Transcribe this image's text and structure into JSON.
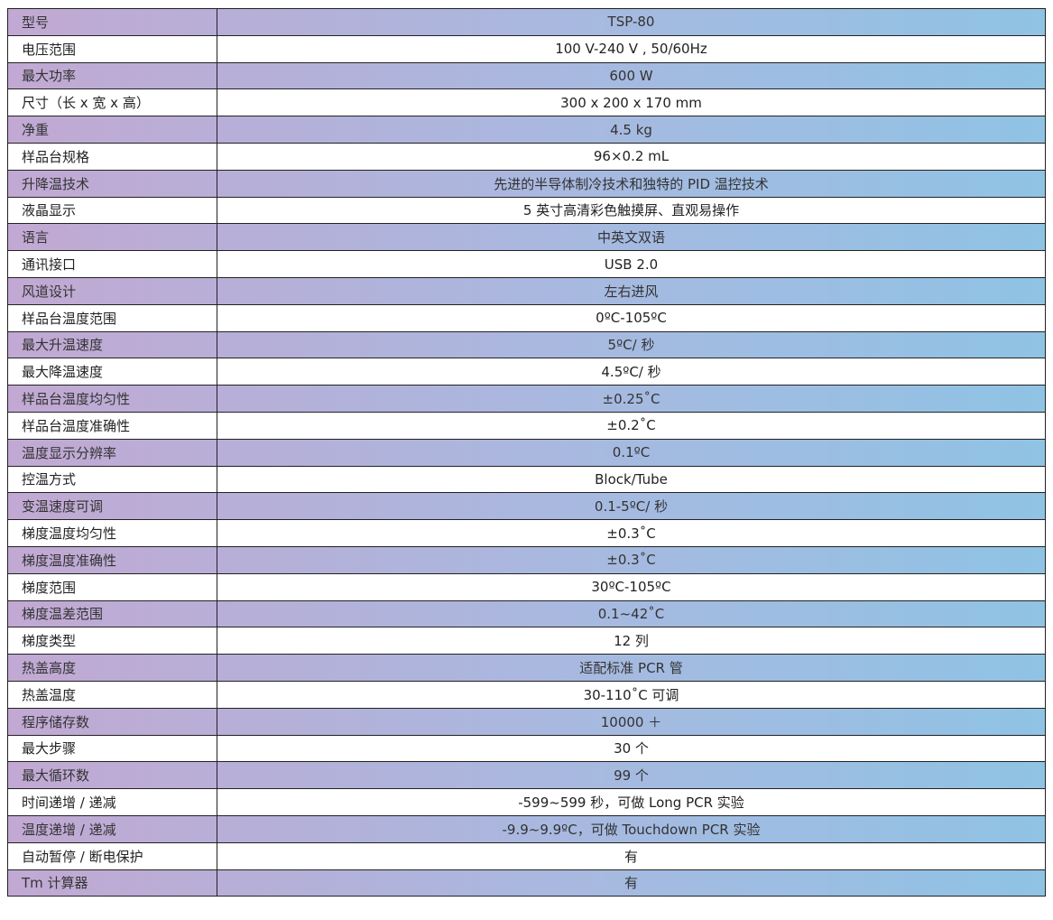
{
  "colors": {
    "shade_start": "#c2a9d3",
    "shade_end": "#8fc3e4",
    "plain": "#ffffff",
    "border": "#222222"
  },
  "rows": [
    {
      "label": "型号",
      "value": "TSP-80"
    },
    {
      "label": "电压范围",
      "value": "100 V-240 V , 50/60Hz"
    },
    {
      "label": "最大功率",
      "value": "600 W"
    },
    {
      "label": "尺寸（长 x 宽 x 高）",
      "value": "300 x 200 x 170 mm"
    },
    {
      "label": "净重",
      "value": "4.5 kg"
    },
    {
      "label": "样品台规格",
      "value": "96×0.2 mL"
    },
    {
      "label": "升降温技术",
      "value": "先进的半导体制冷技术和独特的 PID 温控技术"
    },
    {
      "label": "液晶显示",
      "value": "5 英寸高清彩色触摸屏、直观易操作"
    },
    {
      "label": "语言",
      "value": "中英文双语"
    },
    {
      "label": "通讯接口",
      "value": "USB 2.0"
    },
    {
      "label": "风道设计",
      "value": "左右进风"
    },
    {
      "label": "样品台温度范围",
      "value": "0ºC-105ºC"
    },
    {
      "label": "最大升温速度",
      "value": "5ºC/ 秒"
    },
    {
      "label": "最大降温速度",
      "value": "4.5ºC/ 秒"
    },
    {
      "label": "样品台温度均匀性",
      "value": "±0.25˚C"
    },
    {
      "label": "样品台温度准确性",
      "value": "±0.2˚C"
    },
    {
      "label": "温度显示分辨率",
      "value": "0.1ºC"
    },
    {
      "label": "控温方式",
      "value": "Block/Tube"
    },
    {
      "label": "变温速度可调",
      "value": "0.1-5ºC/ 秒"
    },
    {
      "label": "梯度温度均匀性",
      "value": "±0.3˚C"
    },
    {
      "label": "梯度温度准确性",
      "value": "±0.3˚C"
    },
    {
      "label": "梯度范围",
      "value": "30ºC-105ºC"
    },
    {
      "label": "梯度温差范围",
      "value": "0.1~42˚C"
    },
    {
      "label": "梯度类型",
      "value": "12 列"
    },
    {
      "label": "热盖高度",
      "value": "适配标准 PCR 管"
    },
    {
      "label": "热盖温度",
      "value": "30-110˚C 可调"
    },
    {
      "label": "程序储存数",
      "value": "10000 ＋"
    },
    {
      "label": "最大步骤",
      "value": "30 个"
    },
    {
      "label": "最大循环数",
      "value": "99 个"
    },
    {
      "label": "时间递增 / 递减",
      "value": "-599~599 秒，可做 Long PCR 实验"
    },
    {
      "label": "温度递增 / 递减",
      "value": "-9.9~9.9ºC，可做 Touchdown PCR 实验"
    },
    {
      "label": "自动暂停 / 断电保护",
      "value": "有"
    },
    {
      "label": "Tm 计算器",
      "value": "有"
    }
  ]
}
